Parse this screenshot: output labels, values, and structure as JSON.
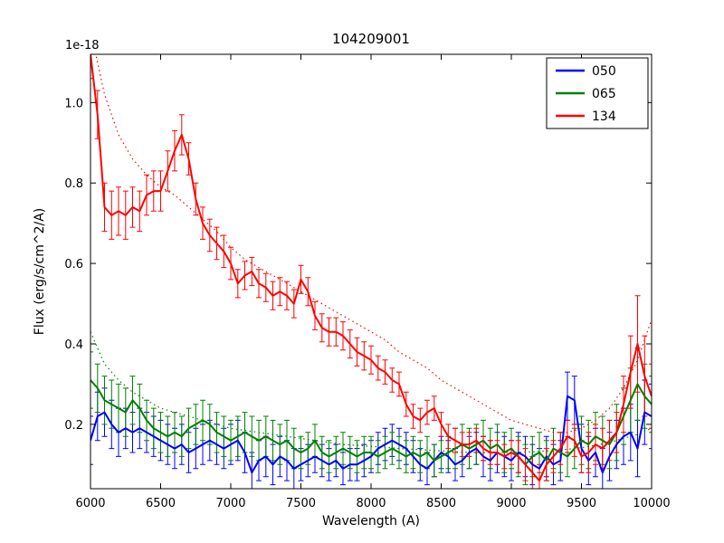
{
  "title": "104209001",
  "axes": {
    "xlabel": "Wavelength (A)",
    "ylabel": "Flux (erg/s/cm^2/A)",
    "offset_label": "1e-18",
    "xlim": [
      6000,
      10000
    ],
    "ylim": [
      0.04,
      1.12
    ],
    "xticks": [
      6000,
      6500,
      7000,
      7500,
      8000,
      8500,
      9000,
      9500,
      10000
    ],
    "yticks": [
      0.2,
      0.4,
      0.6,
      0.8,
      1.0
    ],
    "frame_color": "#000000",
    "background": "#ffffff"
  },
  "legend": {
    "entries": [
      {
        "label": "050",
        "color": "#0000ff"
      },
      {
        "label": "065",
        "color": "#008000"
      },
      {
        "label": "134",
        "color": "#ff0000"
      }
    ]
  },
  "chart_data": {
    "type": "line",
    "title": "104209001",
    "xlabel": "Wavelength (A)",
    "ylabel": "Flux (erg/s/cm^2/A)",
    "y_offset_factor": "1e-18",
    "xlim": [
      6000,
      10000
    ],
    "ylim": [
      0.04,
      1.12
    ],
    "x_start": 6000,
    "x_step": 50,
    "series": [
      {
        "name": "050",
        "color": "#0000ff",
        "values": [
          0.16,
          0.22,
          0.23,
          0.2,
          0.18,
          0.19,
          0.18,
          0.19,
          0.18,
          0.17,
          0.16,
          0.15,
          0.14,
          0.15,
          0.13,
          0.14,
          0.15,
          0.16,
          0.15,
          0.14,
          0.15,
          0.16,
          0.13,
          0.08,
          0.11,
          0.12,
          0.1,
          0.12,
          0.11,
          0.09,
          0.1,
          0.11,
          0.12,
          0.11,
          0.1,
          0.11,
          0.09,
          0.1,
          0.1,
          0.11,
          0.12,
          0.14,
          0.15,
          0.16,
          0.15,
          0.14,
          0.12,
          0.1,
          0.09,
          0.11,
          0.13,
          0.12,
          0.1,
          0.11,
          0.13,
          0.14,
          0.12,
          0.11,
          0.13,
          0.12,
          0.11,
          0.13,
          0.12,
          0.1,
          0.09,
          0.12,
          0.1,
          0.11,
          0.27,
          0.26,
          0.14,
          0.11,
          0.13,
          0.08,
          0.12,
          0.15,
          0.17,
          0.18,
          0.14,
          0.23,
          0.22
        ],
        "errors": [
          0.06,
          0.06,
          0.06,
          0.06,
          0.06,
          0.05,
          0.05,
          0.05,
          0.05,
          0.05,
          0.05,
          0.05,
          0.05,
          0.05,
          0.05,
          0.05,
          0.05,
          0.05,
          0.05,
          0.05,
          0.05,
          0.05,
          0.05,
          0.05,
          0.05,
          0.05,
          0.05,
          0.05,
          0.05,
          0.05,
          0.04,
          0.04,
          0.04,
          0.04,
          0.04,
          0.04,
          0.04,
          0.04,
          0.04,
          0.04,
          0.04,
          0.04,
          0.04,
          0.04,
          0.04,
          0.04,
          0.04,
          0.04,
          0.04,
          0.04,
          0.04,
          0.04,
          0.04,
          0.04,
          0.04,
          0.04,
          0.05,
          0.05,
          0.05,
          0.05,
          0.05,
          0.05,
          0.05,
          0.05,
          0.05,
          0.05,
          0.05,
          0.05,
          0.06,
          0.06,
          0.06,
          0.06,
          0.06,
          0.06,
          0.06,
          0.06,
          0.07,
          0.07,
          0.07,
          0.08,
          0.08
        ]
      },
      {
        "name": "065",
        "color": "#008000",
        "values": [
          0.31,
          0.29,
          0.26,
          0.25,
          0.24,
          0.23,
          0.26,
          0.24,
          0.21,
          0.19,
          0.18,
          0.17,
          0.18,
          0.17,
          0.19,
          0.2,
          0.21,
          0.2,
          0.18,
          0.17,
          0.16,
          0.17,
          0.18,
          0.17,
          0.16,
          0.17,
          0.16,
          0.15,
          0.16,
          0.14,
          0.13,
          0.14,
          0.16,
          0.13,
          0.12,
          0.13,
          0.14,
          0.13,
          0.12,
          0.13,
          0.13,
          0.12,
          0.13,
          0.14,
          0.13,
          0.12,
          0.13,
          0.12,
          0.13,
          0.11,
          0.12,
          0.13,
          0.14,
          0.15,
          0.14,
          0.15,
          0.16,
          0.14,
          0.15,
          0.13,
          0.14,
          0.12,
          0.1,
          0.12,
          0.13,
          0.11,
          0.14,
          0.13,
          0.12,
          0.14,
          0.16,
          0.15,
          0.17,
          0.16,
          0.15,
          0.18,
          0.22,
          0.26,
          0.3,
          0.27,
          0.25
        ],
        "errors": [
          0.07,
          0.06,
          0.06,
          0.06,
          0.06,
          0.06,
          0.06,
          0.06,
          0.05,
          0.05,
          0.05,
          0.05,
          0.05,
          0.05,
          0.05,
          0.05,
          0.05,
          0.05,
          0.05,
          0.05,
          0.05,
          0.05,
          0.05,
          0.05,
          0.05,
          0.05,
          0.05,
          0.05,
          0.05,
          0.05,
          0.04,
          0.04,
          0.04,
          0.04,
          0.04,
          0.04,
          0.04,
          0.04,
          0.04,
          0.04,
          0.04,
          0.04,
          0.04,
          0.04,
          0.04,
          0.04,
          0.04,
          0.04,
          0.04,
          0.04,
          0.04,
          0.04,
          0.05,
          0.05,
          0.05,
          0.05,
          0.05,
          0.05,
          0.05,
          0.05,
          0.05,
          0.05,
          0.05,
          0.05,
          0.05,
          0.05,
          0.05,
          0.05,
          0.05,
          0.05,
          0.06,
          0.06,
          0.06,
          0.06,
          0.06,
          0.07,
          0.07,
          0.08,
          0.09,
          0.08,
          0.07
        ]
      },
      {
        "name": "134",
        "color": "#ff0000",
        "values": [
          1.12,
          0.97,
          0.74,
          0.72,
          0.73,
          0.72,
          0.74,
          0.73,
          0.77,
          0.78,
          0.78,
          0.83,
          0.88,
          0.92,
          0.86,
          0.76,
          0.7,
          0.67,
          0.65,
          0.63,
          0.6,
          0.55,
          0.57,
          0.58,
          0.55,
          0.54,
          0.52,
          0.53,
          0.52,
          0.5,
          0.56,
          0.53,
          0.47,
          0.44,
          0.43,
          0.43,
          0.42,
          0.4,
          0.38,
          0.37,
          0.36,
          0.34,
          0.33,
          0.31,
          0.3,
          0.25,
          0.22,
          0.21,
          0.23,
          0.24,
          0.2,
          0.17,
          0.16,
          0.15,
          0.15,
          0.16,
          0.14,
          0.13,
          0.13,
          0.12,
          0.13,
          0.12,
          0.1,
          0.08,
          0.06,
          0.1,
          0.12,
          0.14,
          0.17,
          0.16,
          0.12,
          0.13,
          0.15,
          0.14,
          0.16,
          0.18,
          0.25,
          0.33,
          0.4,
          0.32,
          0.27
        ],
        "errors": [
          0.06,
          0.06,
          0.06,
          0.06,
          0.06,
          0.06,
          0.05,
          0.05,
          0.05,
          0.05,
          0.05,
          0.05,
          0.05,
          0.05,
          0.04,
          0.04,
          0.04,
          0.04,
          0.04,
          0.04,
          0.04,
          0.035,
          0.035,
          0.035,
          0.035,
          0.035,
          0.035,
          0.035,
          0.035,
          0.035,
          0.035,
          0.035,
          0.035,
          0.035,
          0.035,
          0.035,
          0.035,
          0.035,
          0.035,
          0.035,
          0.035,
          0.03,
          0.03,
          0.03,
          0.03,
          0.03,
          0.03,
          0.03,
          0.03,
          0.03,
          0.03,
          0.03,
          0.03,
          0.03,
          0.03,
          0.03,
          0.03,
          0.03,
          0.03,
          0.03,
          0.03,
          0.04,
          0.04,
          0.04,
          0.04,
          0.04,
          0.04,
          0.04,
          0.04,
          0.04,
          0.04,
          0.05,
          0.05,
          0.05,
          0.05,
          0.05,
          0.07,
          0.09,
          0.12,
          0.1,
          0.08
        ]
      }
    ],
    "models": [
      {
        "name": "134-model",
        "style": "dotted",
        "color": "#ff0000",
        "x_start": 6000,
        "x_step": 100,
        "values": [
          1.18,
          1.02,
          0.92,
          0.86,
          0.82,
          0.79,
          0.77,
          0.74,
          0.71,
          0.68,
          0.64,
          0.61,
          0.59,
          0.57,
          0.55,
          0.53,
          0.51,
          0.49,
          0.47,
          0.45,
          0.43,
          0.41,
          0.38,
          0.36,
          0.34,
          0.31,
          0.29,
          0.27,
          0.25,
          0.23,
          0.21,
          0.2,
          0.19,
          0.18,
          0.18,
          0.19,
          0.21,
          0.24,
          0.29,
          0.36,
          0.46
        ]
      },
      {
        "name": "065-model",
        "style": "dotted",
        "color": "#008000",
        "x_start": 6000,
        "x_step": 100,
        "values": [
          0.43,
          0.35,
          0.31,
          0.28,
          0.26,
          0.24,
          0.23,
          0.22,
          0.21,
          0.2,
          0.19,
          0.185,
          0.18,
          0.175,
          0.17,
          0.165,
          0.16,
          0.155,
          0.15,
          0.148,
          0.145,
          0.143,
          0.14,
          0.138,
          0.136,
          0.134,
          0.132,
          0.13,
          0.13,
          0.13,
          0.13,
          0.131,
          0.133,
          0.135,
          0.138,
          0.142,
          0.148,
          0.155,
          0.165,
          0.175,
          0.19
        ]
      }
    ],
    "legend_position": "upper right",
    "grid": false
  }
}
